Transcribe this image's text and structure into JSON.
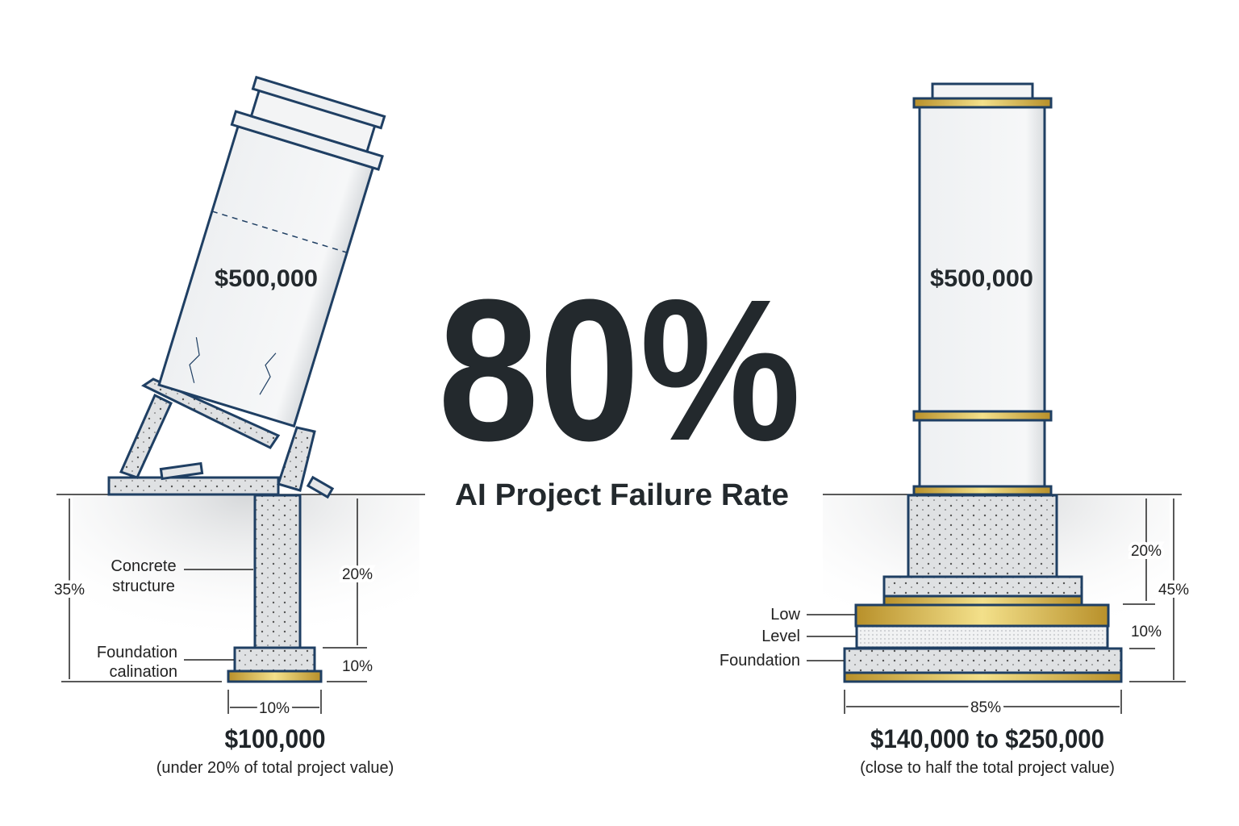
{
  "headline": {
    "value": "80%",
    "caption": "AI Project Failure Rate"
  },
  "left": {
    "tower_value": "$500,000",
    "labels": {
      "structure_line1": "Concrete",
      "structure_line2": "structure",
      "foundation_line1": "Foundation",
      "foundation_line2": "calination"
    },
    "dimensions": {
      "total_height": "35%",
      "column_height": "20%",
      "footing_height": "10%",
      "width": "10%"
    },
    "price": "$100,000",
    "note": "(under 20% of total project value)"
  },
  "right": {
    "tower_value": "$500,000",
    "labels": {
      "low": "Low",
      "level": "Level",
      "foundation": "Foundation"
    },
    "dimensions": {
      "upper_height": "20%",
      "total_height": "45%",
      "lower_height": "10%",
      "width": "85%"
    },
    "price": "$140,000 to $250,000",
    "note": "(close to half the total project value)"
  },
  "colors": {
    "outline": "#1f3f63",
    "concrete": "#e4e6e8",
    "gold": "#c9a43a",
    "text": "#23292d"
  }
}
